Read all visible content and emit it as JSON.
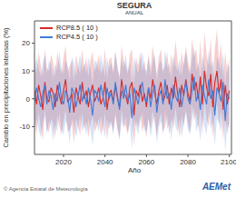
{
  "chart_data": {
    "type": "line",
    "title": "SEGURA",
    "subtitle": "ANUAL",
    "x_label": "Año",
    "y_label": "Cambio en precipitaciones intensas (%)",
    "annotations": [
      "© Agencia Estatal de Meteorología",
      "AEMet"
    ],
    "legend": "top-left",
    "grid": false,
    "xlim": [
      2006,
      2101
    ],
    "xticks": [
      2020,
      2040,
      2060,
      2080,
      2100
    ],
    "ylim": [
      -20,
      28
    ],
    "yticks": [
      -10,
      0,
      10,
      20
    ],
    "x": [
      2006,
      2007,
      2008,
      2009,
      2010,
      2011,
      2012,
      2013,
      2014,
      2015,
      2016,
      2017,
      2018,
      2019,
      2020,
      2021,
      2022,
      2023,
      2024,
      2025,
      2026,
      2027,
      2028,
      2029,
      2030,
      2031,
      2032,
      2033,
      2034,
      2035,
      2036,
      2037,
      2038,
      2039,
      2040,
      2041,
      2042,
      2043,
      2044,
      2045,
      2046,
      2047,
      2048,
      2049,
      2050,
      2051,
      2052,
      2053,
      2054,
      2055,
      2056,
      2057,
      2058,
      2059,
      2060,
      2061,
      2062,
      2063,
      2064,
      2065,
      2066,
      2067,
      2068,
      2069,
      2070,
      2071,
      2072,
      2073,
      2074,
      2075,
      2076,
      2077,
      2078,
      2079,
      2080,
      2081,
      2082,
      2083,
      2084,
      2085,
      2086,
      2087,
      2088,
      2089,
      2090,
      2091,
      2092,
      2093,
      2094,
      2095,
      2096,
      2097,
      2098,
      2099,
      2100
    ],
    "series": [
      {
        "name": "RCP8.5 ( 10 )",
        "color": "#d42a2a",
        "values": [
          3,
          -2,
          5,
          1,
          -4,
          6,
          0,
          -1,
          4,
          2,
          -3,
          5,
          1,
          -2,
          3,
          7,
          -1,
          0,
          2,
          -5,
          4,
          1,
          -2,
          6,
          0,
          3,
          -3,
          2,
          5,
          -1,
          1,
          4,
          -2,
          0,
          6,
          -4,
          2,
          3,
          -1,
          5,
          0,
          -3,
          7,
          2,
          1,
          -2,
          4,
          6,
          -6,
          3,
          1,
          5,
          -1,
          2,
          -3,
          4,
          0,
          7,
          2,
          -2,
          3,
          6,
          -1,
          1,
          5,
          -2,
          4,
          0,
          8,
          2,
          -3,
          5,
          1,
          7,
          2,
          -1,
          9,
          3,
          6,
          0,
          8,
          -2,
          10,
          4,
          1,
          9,
          -3,
          6,
          10,
          2,
          7,
          -4,
          5,
          -2,
          3
        ],
        "lower": [
          -7,
          -13,
          -5,
          -10,
          -15,
          -4,
          -11,
          -12,
          -7,
          -9,
          -14,
          -6,
          -10,
          -13,
          -8,
          -4,
          -12,
          -11,
          -9,
          -16,
          -7,
          -10,
          -13,
          -5,
          -11,
          -8,
          -14,
          -9,
          -6,
          -12,
          -10,
          -7,
          -13,
          -11,
          -5,
          -15,
          -9,
          -8,
          -12,
          -6,
          -11,
          -14,
          -4,
          -9,
          -10,
          -13,
          -7,
          -5,
          -17,
          -8,
          -10,
          -6,
          -12,
          -9,
          -14,
          -7,
          -11,
          -4,
          -9,
          -13,
          -8,
          -5,
          -12,
          -10,
          -6,
          -13,
          -7,
          -11,
          -3,
          -9,
          -14,
          -6,
          -10,
          -4,
          -9,
          -12,
          -2,
          -8,
          -5,
          -11,
          -3,
          -13,
          -1,
          -7,
          -10,
          -2,
          -14,
          -5,
          -1,
          -9,
          -4,
          -15,
          -6,
          -13,
          -8
        ],
        "upper": [
          14,
          9,
          17,
          12,
          8,
          18,
          11,
          10,
          16,
          13,
          8,
          17,
          12,
          9,
          15,
          19,
          10,
          12,
          14,
          6,
          16,
          12,
          9,
          18,
          11,
          15,
          8,
          14,
          17,
          10,
          12,
          16,
          9,
          11,
          18,
          7,
          14,
          15,
          10,
          17,
          11,
          8,
          19,
          14,
          12,
          9,
          16,
          18,
          5,
          15,
          12,
          17,
          10,
          14,
          8,
          16,
          11,
          19,
          14,
          9,
          15,
          18,
          10,
          12,
          17,
          9,
          16,
          11,
          21,
          14,
          8,
          17,
          12,
          19,
          14,
          10,
          22,
          15,
          18,
          11,
          21,
          9,
          24,
          16,
          12,
          22,
          8,
          18,
          25,
          14,
          20,
          7,
          17,
          9,
          15
        ]
      },
      {
        "name": "RCP4.5 ( 10 )",
        "color": "#3f7bd6",
        "values": [
          -1,
          4,
          0,
          -3,
          2,
          5,
          -2,
          3,
          1,
          -4,
          2,
          -1,
          6,
          0,
          -2,
          3,
          1,
          -5,
          4,
          2,
          -3,
          1,
          5,
          -1,
          2,
          -2,
          4,
          0,
          -6,
          3,
          2,
          -1,
          5,
          1,
          -3,
          4,
          0,
          2,
          -2,
          6,
          1,
          -4,
          3,
          0,
          5,
          -1,
          2,
          -7,
          4,
          1,
          -2,
          3,
          6,
          0,
          -1,
          4,
          -3,
          2,
          5,
          -5,
          1,
          3,
          -2,
          7,
          0,
          2,
          -4,
          5,
          1,
          -1,
          4,
          -3,
          2,
          6,
          0,
          -2,
          3,
          8,
          -1,
          2,
          -4,
          5,
          1,
          -2,
          7,
          0,
          3,
          -6,
          4,
          2,
          -1,
          6,
          -8,
          2,
          0
        ],
        "lower": [
          -12,
          -7,
          -11,
          -14,
          -9,
          -6,
          -13,
          -8,
          -10,
          -15,
          -9,
          -12,
          -5,
          -11,
          -13,
          -8,
          -10,
          -16,
          -7,
          -9,
          -14,
          -10,
          -6,
          -12,
          -9,
          -13,
          -7,
          -11,
          -17,
          -8,
          -9,
          -12,
          -6,
          -10,
          -14,
          -7,
          -11,
          -9,
          -13,
          -5,
          -10,
          -15,
          -8,
          -11,
          -6,
          -12,
          -9,
          -18,
          -7,
          -10,
          -13,
          -8,
          -5,
          -11,
          -12,
          -7,
          -14,
          -9,
          -6,
          -16,
          -10,
          -8,
          -13,
          -4,
          -11,
          -9,
          -15,
          -6,
          -10,
          -12,
          -7,
          -14,
          -9,
          -5,
          -11,
          -13,
          -8,
          -3,
          -12,
          -9,
          -15,
          -6,
          -10,
          -13,
          -4,
          -11,
          -8,
          -17,
          -7,
          -9,
          -12,
          -5,
          -19,
          -9,
          -11
        ],
        "upper": [
          10,
          15,
          11,
          8,
          13,
          16,
          9,
          14,
          12,
          7,
          13,
          10,
          17,
          11,
          9,
          14,
          12,
          6,
          15,
          13,
          8,
          12,
          16,
          10,
          13,
          9,
          15,
          11,
          5,
          14,
          13,
          10,
          16,
          12,
          8,
          15,
          11,
          13,
          9,
          17,
          12,
          7,
          14,
          11,
          16,
          10,
          13,
          4,
          15,
          12,
          9,
          14,
          17,
          11,
          10,
          15,
          8,
          13,
          16,
          6,
          12,
          14,
          9,
          18,
          11,
          13,
          7,
          16,
          12,
          10,
          15,
          8,
          13,
          17,
          11,
          9,
          14,
          19,
          10,
          13,
          7,
          16,
          12,
          9,
          18,
          11,
          14,
          5,
          15,
          13,
          10,
          17,
          3,
          13,
          11
        ]
      }
    ]
  }
}
